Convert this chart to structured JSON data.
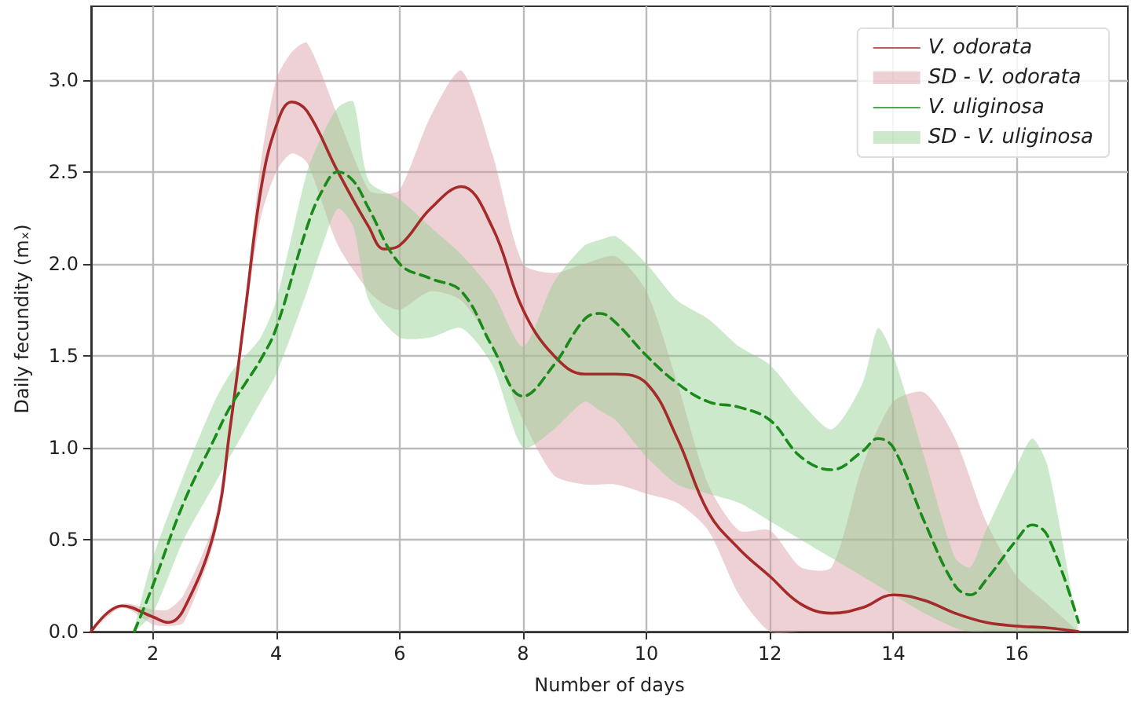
{
  "chart_data": {
    "type": "line",
    "xlabel": "Number of days",
    "ylabel": "Daily fecundity (mₓ)",
    "xlim": [
      1,
      17.8
    ],
    "ylim": [
      0,
      3.4
    ],
    "xticks": [
      2,
      4,
      6,
      8,
      10,
      12,
      14,
      16
    ],
    "yticks": [
      {
        "value": 0,
        "label": "0.0"
      },
      {
        "value": 0.5,
        "label": "0.5"
      },
      {
        "value": 1,
        "label": "1.0"
      },
      {
        "value": 1.5,
        "label": "1.5"
      },
      {
        "value": 2,
        "label": "2.0"
      },
      {
        "value": 2.5,
        "label": "2.5"
      },
      {
        "value": 3,
        "label": "3.0"
      }
    ],
    "grid": true,
    "legend": "top right",
    "marker": "none",
    "series": [
      {
        "name": "V. odorata",
        "color": "#a52a2a",
        "line_style": "solid",
        "x": [
          1,
          1.5,
          2,
          2.25,
          2.5,
          3,
          3.25,
          3.5,
          3.75,
          4,
          4.25,
          4.5,
          5,
          5.5,
          5.75,
          6,
          6.5,
          7,
          7.5,
          8,
          8.5,
          9,
          9.5,
          10,
          10.5,
          11,
          11.5,
          12,
          12.5,
          13,
          13.5,
          14,
          14.5,
          15,
          15.5,
          16,
          16.5,
          17
        ],
        "values": [
          0,
          0.14,
          0.08,
          0.05,
          0.12,
          0.55,
          1.1,
          1.75,
          2.4,
          2.75,
          2.88,
          2.83,
          2.5,
          2.2,
          2.08,
          2.1,
          2.3,
          2.42,
          2.2,
          1.75,
          1.5,
          1.4,
          1.4,
          1.35,
          1.05,
          0.65,
          0.45,
          0.3,
          0.15,
          0.1,
          0.13,
          0.2,
          0.17,
          0.1,
          0.05,
          0.03,
          0.02,
          0
        ],
        "lower": [
          0,
          0.13,
          0.04,
          0.03,
          0.05,
          0.5,
          1.05,
          1.7,
          2.25,
          2.5,
          2.6,
          2.55,
          2.1,
          1.85,
          1.78,
          1.75,
          1.85,
          1.8,
          1.55,
          1.15,
          0.85,
          0.8,
          0.8,
          0.75,
          0.7,
          0.55,
          0.2,
          0,
          0,
          0,
          0,
          0,
          0,
          0,
          0,
          0,
          0,
          0
        ],
        "upper": [
          0,
          0.15,
          0.12,
          0.12,
          0.2,
          0.6,
          1.15,
          1.8,
          2.55,
          3.0,
          3.15,
          3.2,
          2.8,
          2.4,
          2.38,
          2.4,
          2.8,
          3.05,
          2.6,
          2.0,
          1.95,
          2.0,
          2.04,
          1.85,
          1.35,
          0.8,
          0.55,
          0.55,
          0.35,
          0.35,
          0.9,
          1.25,
          1.3,
          1.05,
          0.6,
          0.3,
          0.15,
          0
        ]
      },
      {
        "type": "area",
        "name": "SD - V. odorata",
        "color": "#d99aa0"
      },
      {
        "name": "V. uliginosa",
        "color": "#1a8a1a",
        "line_style": "dashed",
        "x": [
          1.7,
          2,
          2.5,
          3,
          3.25,
          3.5,
          3.75,
          4,
          4.5,
          4.75,
          5,
          5.25,
          5.5,
          6,
          6.5,
          7,
          7.5,
          8,
          8.5,
          9,
          9.25,
          9.5,
          10,
          10.5,
          11,
          11.5,
          12,
          12.5,
          13,
          13.5,
          13.75,
          14,
          14.5,
          15,
          15.25,
          15.5,
          16,
          16.25,
          16.5,
          17
        ],
        "values": [
          0,
          0.25,
          0.7,
          1.05,
          1.22,
          1.35,
          1.48,
          1.65,
          2.2,
          2.4,
          2.5,
          2.45,
          2.3,
          2.0,
          1.92,
          1.85,
          1.55,
          1.28,
          1.45,
          1.7,
          1.73,
          1.68,
          1.5,
          1.35,
          1.25,
          1.22,
          1.15,
          0.95,
          0.88,
          0.98,
          1.05,
          1.0,
          0.6,
          0.25,
          0.2,
          0.28,
          0.5,
          0.58,
          0.52,
          0.05
        ],
        "lower": [
          0,
          0.1,
          0.5,
          0.8,
          0.95,
          1.1,
          1.25,
          1.4,
          1.85,
          2.1,
          2.3,
          2.2,
          1.8,
          1.6,
          1.6,
          1.65,
          1.45,
          1.0,
          1.1,
          1.25,
          1.2,
          1.15,
          0.95,
          0.8,
          0.75,
          0.7,
          0.6,
          0.5,
          0.4,
          0.3,
          0.25,
          0.2,
          0.1,
          0.02,
          0,
          0,
          0,
          0,
          0,
          0
        ],
        "upper": [
          0.02,
          0.4,
          0.85,
          1.25,
          1.4,
          1.5,
          1.6,
          1.8,
          2.5,
          2.7,
          2.85,
          2.88,
          2.45,
          2.35,
          2.2,
          2.05,
          1.85,
          1.55,
          1.9,
          2.1,
          2.13,
          2.15,
          2.0,
          1.8,
          1.7,
          1.55,
          1.45,
          1.25,
          1.1,
          1.35,
          1.65,
          1.5,
          0.95,
          0.4,
          0.35,
          0.55,
          0.9,
          1.05,
          0.9,
          0
        ]
      },
      {
        "type": "area",
        "name": "SD - V. uliginosa",
        "color": "#8fcf8f"
      }
    ]
  }
}
